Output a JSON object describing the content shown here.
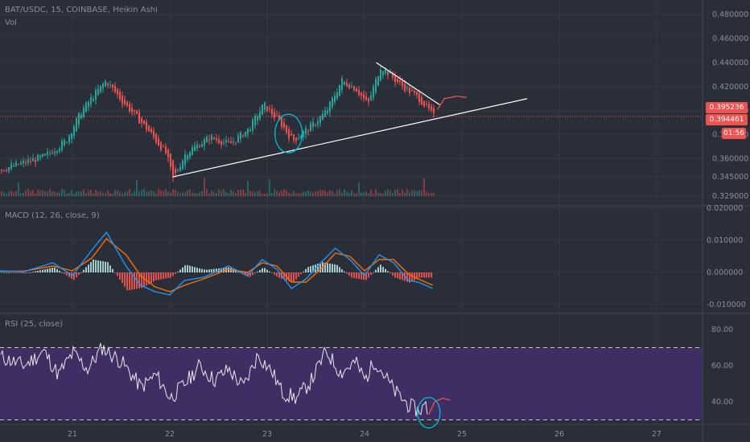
{
  "symbol_header": "BAT/USDC, 15, COINBASE, Heikin Ashi",
  "volume_label": "Vol",
  "macd_label": "MACD (12, 26, close, 9)",
  "rsi_label": "RSI (25, close)",
  "price_tags": {
    "upper": "0.395236",
    "lower": "0.394461",
    "countdown": "01:56"
  },
  "colors": {
    "background": "#2a2e39",
    "grid": "#363a45",
    "text": "#8a8f9c",
    "up": "#26a69a",
    "down": "#ef5350",
    "macd_line": "#2196f3",
    "signal_line": "#ff6d00",
    "rsi_line": "#e8e8e8",
    "rsi_band": "#3f2e63",
    "trendline": "#ffffff",
    "circle": "#00bcd4",
    "price_line": "#ef5350",
    "projection": "#ef5350"
  },
  "chart_data": [
    {
      "type": "candlestick",
      "title": "BAT/USDC, 15, COINBASE, Heikin Ashi",
      "x_ticks": [
        "21",
        "22",
        "23",
        "24",
        "25",
        "26",
        "27"
      ],
      "x_range": [
        20.25,
        27.2
      ],
      "y_ticks": [
        "0.480000",
        "0.460000",
        "0.440000",
        "0.420000",
        "0.400000",
        "0.380000",
        "0.360000",
        "0.345000",
        "0.329000"
      ],
      "ylim": [
        0.329,
        0.48
      ],
      "last_price": 0.395236,
      "price_waypoints": [
        [
          20.25,
          0.351
        ],
        [
          20.5,
          0.357
        ],
        [
          20.7,
          0.362
        ],
        [
          20.92,
          0.375
        ],
        [
          21.08,
          0.4
        ],
        [
          21.33,
          0.425
        ],
        [
          21.5,
          0.408
        ],
        [
          21.75,
          0.385
        ],
        [
          21.95,
          0.364
        ],
        [
          22.02,
          0.343
        ],
        [
          22.15,
          0.365
        ],
        [
          22.4,
          0.378
        ],
        [
          22.6,
          0.372
        ],
        [
          22.8,
          0.385
        ],
        [
          22.95,
          0.405
        ],
        [
          23.12,
          0.39
        ],
        [
          23.25,
          0.375
        ],
        [
          23.45,
          0.388
        ],
        [
          23.6,
          0.4
        ],
        [
          23.75,
          0.425
        ],
        [
          23.9,
          0.418
        ],
        [
          24.02,
          0.405
        ],
        [
          24.15,
          0.437
        ],
        [
          24.35,
          0.422
        ],
        [
          24.55,
          0.41
        ],
        [
          24.7,
          0.395
        ]
      ],
      "volume_note": "volume histogram along the bottom of the price pane",
      "annotations": {
        "support_trendline": [
          [
            22.03,
            0.345
          ],
          [
            25.67,
            0.41
          ]
        ],
        "resistance_trendline": [
          [
            24.12,
            0.44
          ],
          [
            24.77,
            0.405
          ]
        ],
        "circle_center": [
          23.22,
          0.381
        ],
        "projection": [
          [
            24.75,
            0.401
          ],
          [
            24.82,
            0.41
          ],
          [
            24.95,
            0.412
          ],
          [
            25.05,
            0.411
          ]
        ]
      }
    },
    {
      "type": "line",
      "title": "MACD (12, 26, close, 9)",
      "y_ticks": [
        "0.020000",
        "0.010000",
        "0.000000",
        "-0.010000"
      ],
      "ylim": [
        -0.01,
        0.02
      ],
      "series": [
        {
          "name": "MACD",
          "x": [
            20.25,
            20.5,
            20.8,
            21.0,
            21.2,
            21.35,
            21.55,
            21.7,
            21.85,
            22.0,
            22.15,
            22.35,
            22.6,
            22.8,
            22.95,
            23.1,
            23.25,
            23.4,
            23.55,
            23.7,
            23.85,
            24.0,
            24.15,
            24.3,
            24.45,
            24.55,
            24.7
          ],
          "values": [
            0.0005,
            0.0002,
            0.003,
            -0.001,
            0.007,
            0.0125,
            0.002,
            -0.004,
            -0.006,
            -0.007,
            -0.0025,
            -0.0015,
            0.002,
            -0.001,
            0.004,
            0.001,
            -0.005,
            -0.002,
            0.003,
            0.0075,
            0.004,
            -0.001,
            0.0055,
            0.003,
            -0.0025,
            -0.003,
            -0.005
          ]
        },
        {
          "name": "Signal",
          "x": [
            20.25,
            20.5,
            20.8,
            21.0,
            21.2,
            21.35,
            21.55,
            21.7,
            21.85,
            22.0,
            22.15,
            22.35,
            22.6,
            22.8,
            22.95,
            23.1,
            23.25,
            23.4,
            23.55,
            23.7,
            23.85,
            24.0,
            24.15,
            24.3,
            24.45,
            24.55,
            24.7
          ],
          "values": [
            0.0004,
            0.0004,
            0.002,
            0.0005,
            0.0045,
            0.0105,
            0.0055,
            -0.001,
            -0.0045,
            -0.006,
            -0.004,
            -0.002,
            0.001,
            0.0,
            0.003,
            0.002,
            -0.003,
            -0.003,
            0.001,
            0.006,
            0.005,
            0.0005,
            0.004,
            0.004,
            -0.0005,
            -0.002,
            -0.004
          ]
        }
      ]
    },
    {
      "type": "line",
      "title": "RSI (25, close)",
      "y_ticks": [
        "80.00",
        "60.00",
        "40.00"
      ],
      "ylim": [
        28,
        88
      ],
      "bands": [
        30,
        70
      ],
      "series": [
        {
          "name": "RSI",
          "x": [
            20.25,
            20.5,
            20.7,
            20.85,
            21.0,
            21.15,
            21.3,
            21.5,
            21.7,
            21.85,
            22.0,
            22.15,
            22.3,
            22.45,
            22.6,
            22.75,
            22.9,
            23.05,
            23.15,
            23.3,
            23.45,
            23.6,
            23.75,
            23.9,
            24.0,
            24.1,
            24.3,
            24.45,
            24.55,
            24.62,
            24.66
          ],
          "values": [
            65,
            60,
            68,
            55,
            67,
            58,
            70,
            62,
            48,
            55,
            42,
            50,
            60,
            52,
            58,
            48,
            66,
            56,
            45,
            42,
            52,
            68,
            56,
            62,
            52,
            63,
            46,
            38,
            35,
            38,
            33
          ]
        }
      ],
      "annotations": {
        "projection": [
          [
            24.66,
            33
          ],
          [
            24.72,
            40
          ],
          [
            24.8,
            42
          ],
          [
            24.88,
            41
          ]
        ],
        "circle_center": [
          24.66,
          34
        ]
      }
    }
  ]
}
